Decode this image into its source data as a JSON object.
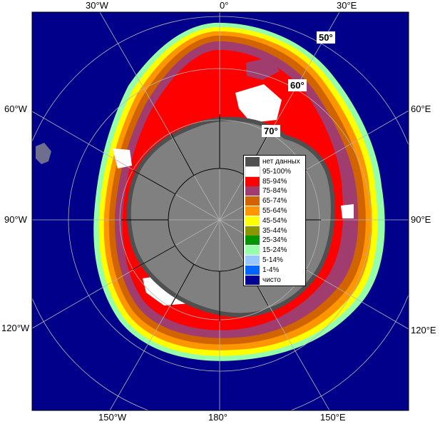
{
  "map": {
    "colors": {
      "ocean": "#00008b",
      "land": "#808080",
      "frame_bg": "#ffffff"
    },
    "top_labels": [
      "30°W",
      "0°",
      "30°E"
    ],
    "left_labels": [
      "60°W",
      "90°W",
      "120°W"
    ],
    "right_labels": [
      "60°E",
      "90°E",
      "120°E"
    ],
    "bottom_labels": [
      "150°W",
      "180°",
      "150°E"
    ],
    "latitude_labels": [
      "50°",
      "60°",
      "70°"
    ]
  },
  "legend": {
    "items": [
      {
        "label": "нет данных",
        "color": "#505050"
      },
      {
        "label": "95-100%",
        "color": "#ffffff"
      },
      {
        "label": "85-94%",
        "color": "#ff0000"
      },
      {
        "label": "75-84%",
        "color": "#a03c6e"
      },
      {
        "label": "65-74%",
        "color": "#d26400"
      },
      {
        "label": "55-64%",
        "color": "#ff9600"
      },
      {
        "label": "45-54%",
        "color": "#ffff00"
      },
      {
        "label": "35-44%",
        "color": "#8c9600"
      },
      {
        "label": "25-34%",
        "color": "#009600"
      },
      {
        "label": "15-24%",
        "color": "#96ffaa"
      },
      {
        "label": "5-14%",
        "color": "#96c8ff"
      },
      {
        "label": "1-4%",
        "color": "#0064ff"
      },
      {
        "label": "чисто",
        "color": "#000096"
      }
    ]
  }
}
